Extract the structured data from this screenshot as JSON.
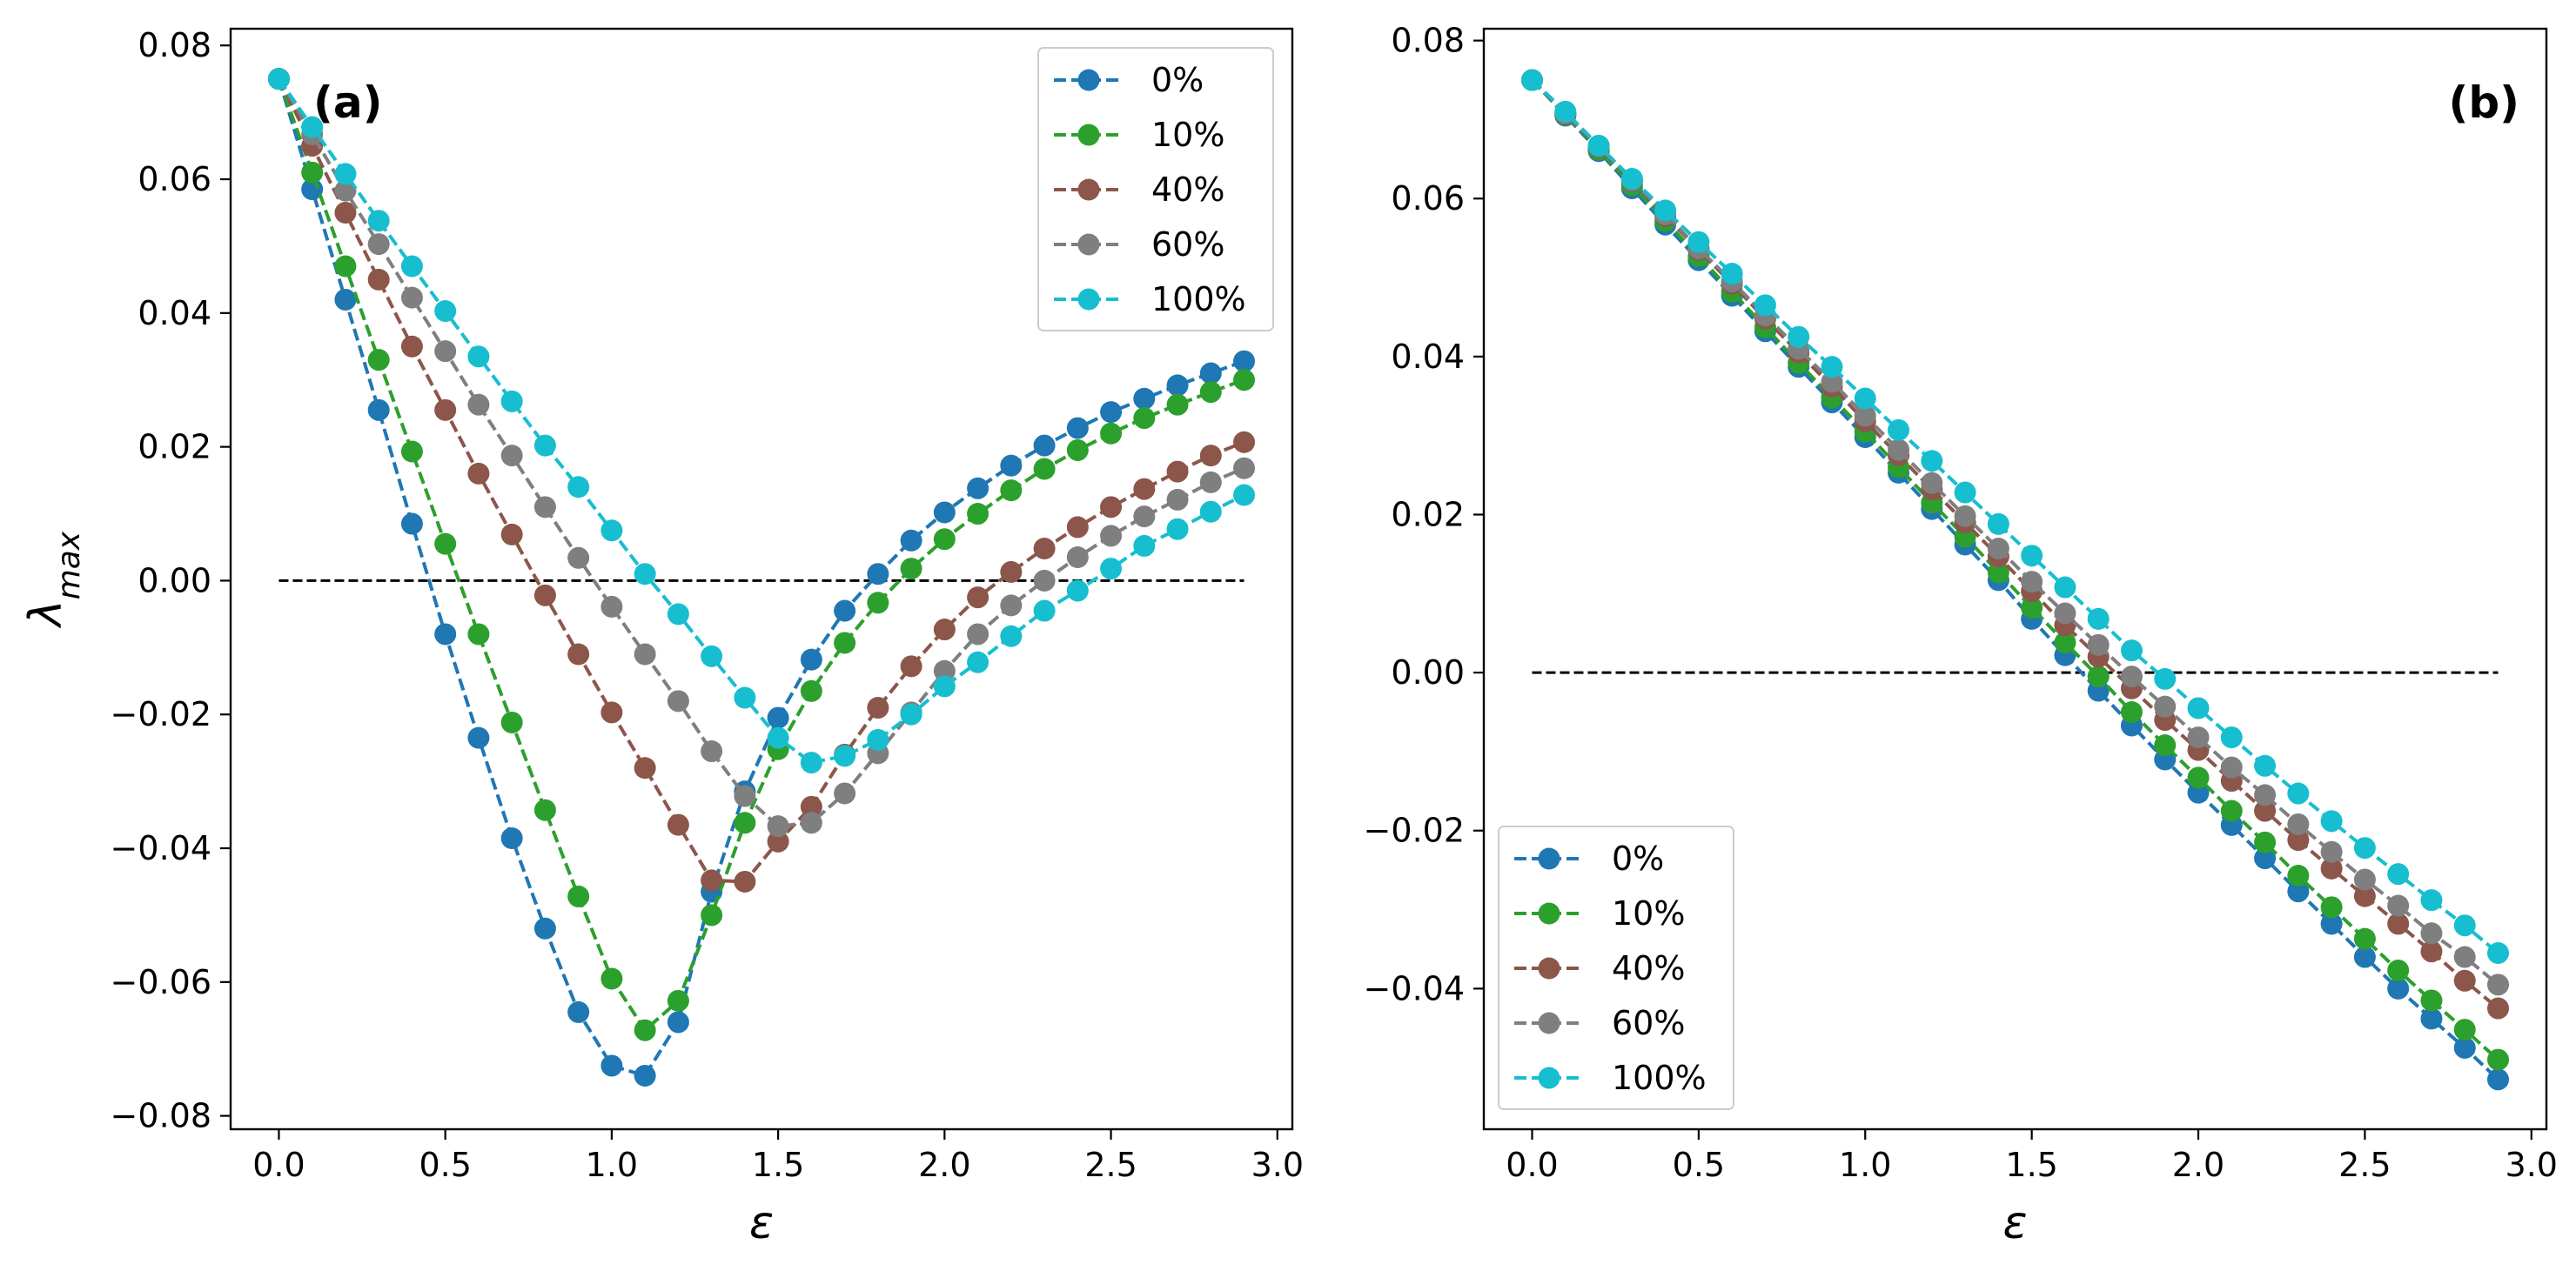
{
  "chart_data": [
    {
      "type": "line",
      "panel_label": "(a)",
      "xlabel": "ε",
      "ylabel": "λ",
      "ylabel_subscript": "max",
      "xlim": [
        -0.145,
        3.045
      ],
      "ylim": [
        -0.082,
        0.0825
      ],
      "xticks": [
        0.0,
        0.5,
        1.0,
        1.5,
        2.0,
        2.5,
        3.0
      ],
      "xtick_labels": [
        "0.0",
        "0.5",
        "1.0",
        "1.5",
        "2.0",
        "2.5",
        "3.0"
      ],
      "yticks": [
        -0.08,
        -0.06,
        -0.04,
        -0.02,
        0.0,
        0.02,
        0.04,
        0.06,
        0.08
      ],
      "ytick_labels": [
        "−0.08",
        "−0.06",
        "−0.04",
        "−0.02",
        "0.00",
        "0.02",
        "0.04",
        "0.06",
        "0.08"
      ],
      "legend_position": "top-right",
      "reference_line": {
        "y": 0,
        "x_from": 0.0,
        "x_to": 2.9,
        "style": "dashed",
        "color": "#000000"
      },
      "x": [
        0.0,
        0.1,
        0.2,
        0.3,
        0.4,
        0.5,
        0.6,
        0.7,
        0.8,
        0.9,
        1.0,
        1.1,
        1.2,
        1.3,
        1.4,
        1.5,
        1.6,
        1.7,
        1.8,
        1.9,
        2.0,
        2.1,
        2.2,
        2.3,
        2.4,
        2.5,
        2.6,
        2.7,
        2.8,
        2.9
      ],
      "series": [
        {
          "name": "0%",
          "color": "#1f77b4",
          "values": [
            0.075,
            0.0585,
            0.042,
            0.0255,
            0.0085,
            -0.008,
            -0.0235,
            -0.0385,
            -0.052,
            -0.0645,
            -0.0725,
            -0.074,
            -0.066,
            -0.0465,
            -0.0315,
            -0.0205,
            -0.0118,
            -0.0045,
            0.001,
            0.006,
            0.0102,
            0.0138,
            0.0172,
            0.0202,
            0.0228,
            0.0252,
            0.0272,
            0.0292,
            0.031,
            0.0328
          ]
        },
        {
          "name": "10%",
          "color": "#2ca02c",
          "values": [
            0.075,
            0.061,
            0.047,
            0.033,
            0.0193,
            0.0055,
            -0.008,
            -0.0212,
            -0.0343,
            -0.0472,
            -0.0595,
            -0.0672,
            -0.0628,
            -0.05,
            -0.0362,
            -0.0252,
            -0.0165,
            -0.0093,
            -0.0033,
            0.0018,
            0.0062,
            0.01,
            0.0135,
            0.0167,
            0.0195,
            0.022,
            0.0243,
            0.0263,
            0.0282,
            0.03
          ]
        },
        {
          "name": "40%",
          "color": "#8c564b",
          "values": [
            0.075,
            0.065,
            0.055,
            0.045,
            0.035,
            0.0255,
            0.016,
            0.0069,
            -0.0022,
            -0.011,
            -0.0197,
            -0.028,
            -0.0365,
            -0.0448,
            -0.045,
            -0.039,
            -0.0338,
            -0.026,
            -0.019,
            -0.0128,
            -0.0073,
            -0.0025,
            0.0013,
            0.0048,
            0.008,
            0.011,
            0.0137,
            0.0163,
            0.0187,
            0.0207
          ]
        },
        {
          "name": "60%",
          "color": "#7f7f7f",
          "values": [
            0.075,
            0.0667,
            0.0583,
            0.0503,
            0.0423,
            0.0343,
            0.0263,
            0.0187,
            0.011,
            0.0034,
            -0.0039,
            -0.011,
            -0.018,
            -0.0255,
            -0.0322,
            -0.0367,
            -0.0362,
            -0.0318,
            -0.0258,
            -0.0197,
            -0.0135,
            -0.008,
            -0.0037,
            0.0,
            0.0035,
            0.0067,
            0.0096,
            0.0121,
            0.0147,
            0.0168
          ]
        },
        {
          "name": "100%",
          "color": "#17becf",
          "values": [
            0.075,
            0.0678,
            0.0608,
            0.0538,
            0.047,
            0.0403,
            0.0335,
            0.0268,
            0.0202,
            0.014,
            0.0075,
            0.001,
            -0.005,
            -0.0113,
            -0.0175,
            -0.0235,
            -0.0272,
            -0.0262,
            -0.0238,
            -0.02,
            -0.0158,
            -0.0122,
            -0.0083,
            -0.0045,
            -0.0015,
            0.0018,
            0.0052,
            0.0077,
            0.0103,
            0.0128
          ]
        }
      ]
    },
    {
      "type": "line",
      "panel_label": "(b)",
      "xlabel": "ε",
      "xlim": [
        -0.145,
        3.045
      ],
      "ylim": [
        -0.0578,
        0.0815
      ],
      "xticks": [
        0.0,
        0.5,
        1.0,
        1.5,
        2.0,
        2.5,
        3.0
      ],
      "xtick_labels": [
        "0.0",
        "0.5",
        "1.0",
        "1.5",
        "2.0",
        "2.5",
        "3.0"
      ],
      "yticks": [
        -0.04,
        -0.02,
        0.0,
        0.02,
        0.04,
        0.06,
        0.08
      ],
      "ytick_labels": [
        "−0.04",
        "−0.02",
        "0.00",
        "0.02",
        "0.04",
        "0.06",
        "0.08"
      ],
      "legend_position": "bottom-left",
      "reference_line": {
        "y": 0,
        "x_from": 0.0,
        "x_to": 2.9,
        "style": "dashed",
        "color": "#000000"
      },
      "x": [
        0.0,
        0.1,
        0.2,
        0.3,
        0.4,
        0.5,
        0.6,
        0.7,
        0.8,
        0.9,
        1.0,
        1.1,
        1.2,
        1.3,
        1.4,
        1.5,
        1.6,
        1.7,
        1.8,
        1.9,
        2.0,
        2.1,
        2.2,
        2.3,
        2.4,
        2.5,
        2.6,
        2.7,
        2.8,
        2.9
      ],
      "series": [
        {
          "name": "0%",
          "color": "#1f77b4",
          "values": [
            0.075,
            0.0705,
            0.066,
            0.0613,
            0.0567,
            0.0522,
            0.0477,
            0.0432,
            0.0387,
            0.0342,
            0.0298,
            0.0253,
            0.0207,
            0.0162,
            0.0117,
            0.0068,
            0.0022,
            -0.0023,
            -0.0067,
            -0.011,
            -0.0152,
            -0.0193,
            -0.0235,
            -0.0277,
            -0.0318,
            -0.036,
            -0.04,
            -0.0438,
            -0.0475,
            -0.0515
          ]
        },
        {
          "name": "10%",
          "color": "#2ca02c",
          "values": [
            0.075,
            0.0706,
            0.0662,
            0.0617,
            0.0572,
            0.0527,
            0.0482,
            0.0437,
            0.0392,
            0.0348,
            0.0305,
            0.026,
            0.0215,
            0.0172,
            0.0127,
            0.0082,
            0.0038,
            -0.0005,
            -0.005,
            -0.0092,
            -0.0133,
            -0.0175,
            -0.0215,
            -0.0257,
            -0.0297,
            -0.0337,
            -0.0377,
            -0.0415,
            -0.0452,
            -0.049
          ]
        },
        {
          "name": "40%",
          "color": "#8c564b",
          "values": [
            0.075,
            0.0707,
            0.0665,
            0.0622,
            0.0578,
            0.0535,
            0.0492,
            0.0448,
            0.0405,
            0.0362,
            0.0318,
            0.0275,
            0.0232,
            0.019,
            0.0147,
            0.0103,
            0.006,
            0.002,
            -0.002,
            -0.006,
            -0.0098,
            -0.0137,
            -0.0175,
            -0.0212,
            -0.0248,
            -0.0283,
            -0.0318,
            -0.0353,
            -0.039,
            -0.0425
          ]
        },
        {
          "name": "60%",
          "color": "#7f7f7f",
          "values": [
            0.075,
            0.0708,
            0.0666,
            0.0623,
            0.058,
            0.0537,
            0.0495,
            0.0452,
            0.041,
            0.0368,
            0.0325,
            0.0282,
            0.024,
            0.0198,
            0.0157,
            0.0115,
            0.0075,
            0.0035,
            -0.0005,
            -0.0043,
            -0.0082,
            -0.012,
            -0.0155,
            -0.0192,
            -0.0227,
            -0.0262,
            -0.0295,
            -0.033,
            -0.036,
            -0.0395
          ]
        },
        {
          "name": "100%",
          "color": "#17becf",
          "values": [
            0.075,
            0.071,
            0.0667,
            0.0625,
            0.0585,
            0.0545,
            0.0505,
            0.0465,
            0.0425,
            0.0387,
            0.0347,
            0.0307,
            0.0268,
            0.0228,
            0.0188,
            0.0148,
            0.0108,
            0.0068,
            0.0028,
            -0.0008,
            -0.0045,
            -0.0082,
            -0.0118,
            -0.0153,
            -0.0188,
            -0.0222,
            -0.0255,
            -0.0288,
            -0.032,
            -0.0355
          ]
        }
      ]
    }
  ]
}
